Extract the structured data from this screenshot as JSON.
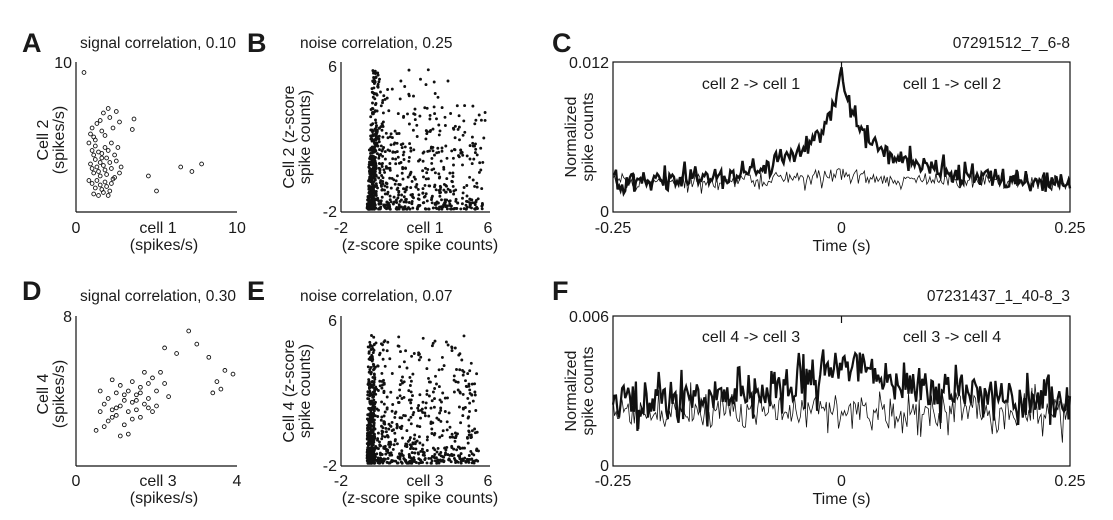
{
  "panels": {
    "A": {
      "letter": "A",
      "title": "signal correlation, 0.10",
      "ylabel1": "Cell 2",
      "ylabel2": "(spikes/s)",
      "xlabel1": "cell 1",
      "xlabel2": "(spikes/s)",
      "xticks": [
        "0",
        "10"
      ],
      "ytick_top": "10"
    },
    "B": {
      "letter": "B",
      "title": "noise correlation, 0.25",
      "ylabel1": "Cell 2 (z-score",
      "ylabel2": "spike counts)",
      "xlabel1": "cell 1",
      "xlabel2": "(z-score spike counts)",
      "xticks": [
        "-2",
        "6"
      ],
      "yticks": [
        "6",
        "-2"
      ]
    },
    "C": {
      "letter": "C",
      "title": "07291512_7_6-8",
      "ylabel1": "Normalized",
      "ylabel2": "spike counts",
      "xlabel": "Time (s)",
      "xticks": [
        "-0.25",
        "0",
        "0.25"
      ],
      "yticks": [
        "0.012",
        "0"
      ],
      "annot_left": "cell 2 -> cell 1",
      "annot_right": "cell 1 -> cell 2"
    },
    "D": {
      "letter": "D",
      "title": "signal correlation, 0.30",
      "ylabel1": "Cell 4",
      "ylabel2": "(spikes/s)",
      "xlabel1": "cell 3",
      "xlabel2": "(spikes/s)",
      "xticks": [
        "0",
        "4"
      ],
      "ytick_top": "8"
    },
    "E": {
      "letter": "E",
      "title": "noise correlation, 0.07",
      "ylabel1": "Cell 4 (z-score",
      "ylabel2": "spike counts)",
      "xlabel1": "cell 3",
      "xlabel2": "(z-score spike counts)",
      "xticks": [
        "-2",
        "6"
      ],
      "yticks": [
        "6",
        "-2"
      ]
    },
    "F": {
      "letter": "F",
      "title": "07231437_1_40-8_3",
      "ylabel1": "Normalized",
      "ylabel2": "spike counts",
      "xlabel": "Time (s)",
      "xticks": [
        "-0.25",
        "0",
        "0.25"
      ],
      "yticks": [
        "0.006",
        "0"
      ],
      "annot_left": "cell 4 -> cell 3",
      "annot_right": "cell 3 -> cell 4"
    }
  },
  "chart_data": [
    {
      "panel": "A",
      "type": "scatter",
      "title": "signal correlation, 0.10",
      "xlabel": "cell 1 (spikes/s)",
      "ylabel": "Cell 2 (spikes/s)",
      "xlim": [
        0,
        10
      ],
      "ylim": [
        0,
        10
      ],
      "correlation": 0.1,
      "marker": "open-circle",
      "points": [
        [
          0.5,
          9.3
        ],
        [
          0.8,
          4.6
        ],
        [
          0.9,
          5.2
        ],
        [
          1.0,
          5.6
        ],
        [
          1.1,
          5.0
        ],
        [
          1.2,
          4.4
        ],
        [
          1.3,
          5.9
        ],
        [
          1.5,
          6.1
        ],
        [
          1.6,
          5.4
        ],
        [
          1.7,
          6.6
        ],
        [
          1.8,
          5.1
        ],
        [
          2.0,
          6.9
        ],
        [
          2.1,
          6.3
        ],
        [
          2.3,
          5.6
        ],
        [
          2.5,
          6.7
        ],
        [
          2.7,
          6.0
        ],
        [
          1.0,
          4.1
        ],
        [
          1.1,
          3.8
        ],
        [
          1.2,
          3.5
        ],
        [
          1.4,
          4.0
        ],
        [
          1.5,
          3.3
        ],
        [
          1.6,
          3.9
        ],
        [
          1.8,
          4.3
        ],
        [
          1.9,
          3.6
        ],
        [
          2.0,
          4.1
        ],
        [
          2.2,
          4.6
        ],
        [
          2.4,
          3.8
        ],
        [
          2.6,
          4.3
        ],
        [
          0.9,
          3.2
        ],
        [
          1.0,
          2.9
        ],
        [
          1.1,
          2.6
        ],
        [
          1.3,
          3.0
        ],
        [
          1.4,
          2.7
        ],
        [
          1.5,
          2.4
        ],
        [
          1.7,
          3.1
        ],
        [
          1.8,
          2.8
        ],
        [
          1.9,
          2.5
        ],
        [
          2.1,
          3.3
        ],
        [
          2.2,
          2.9
        ],
        [
          2.3,
          2.2
        ],
        [
          2.5,
          3.4
        ],
        [
          2.7,
          2.6
        ],
        [
          0.8,
          2.1
        ],
        [
          1.0,
          1.9
        ],
        [
          1.2,
          1.6
        ],
        [
          1.3,
          2.1
        ],
        [
          1.5,
          1.8
        ],
        [
          1.6,
          1.5
        ],
        [
          1.8,
          2.0
        ],
        [
          1.9,
          1.7
        ],
        [
          2.1,
          1.4
        ],
        [
          2.2,
          1.9
        ],
        [
          2.4,
          2.3
        ],
        [
          1.1,
          1.2
        ],
        [
          1.4,
          1.1
        ],
        [
          1.7,
          1.3
        ],
        [
          2.0,
          1.1
        ],
        [
          3.5,
          5.5
        ],
        [
          3.6,
          6.2
        ],
        [
          4.5,
          2.4
        ],
        [
          5.0,
          1.4
        ],
        [
          6.5,
          3.0
        ],
        [
          7.2,
          2.7
        ],
        [
          7.8,
          3.2
        ],
        [
          1.6,
          3.6
        ],
        [
          1.2,
          4.8
        ],
        [
          2.8,
          3.0
        ]
      ]
    },
    {
      "panel": "B",
      "type": "scatter",
      "title": "noise correlation, 0.25",
      "xlabel": "cell 1 (z-score spike counts)",
      "ylabel": "Cell 2 (z-score spike counts)",
      "xlim": [
        -2,
        6
      ],
      "ylim": [
        -2,
        6
      ],
      "correlation": 0.25,
      "marker": "filled-dot",
      "description_points": "dense cloud, concentrated near x≈-0.5 to 0, y spanning -1.8 to 5.6"
    },
    {
      "panel": "C",
      "type": "line",
      "title": "07291512_7_6-8",
      "xlabel": "Time (s)",
      "ylabel": "Normalized spike counts",
      "xlim": [
        -0.25,
        0.25
      ],
      "ylim": [
        0,
        0.012
      ],
      "xticks": [
        -0.25,
        0,
        0.25
      ],
      "yticks": [
        0,
        0.012
      ],
      "series": [
        {
          "style": "thick",
          "peak_x": 0.0,
          "peak_y": 0.0112,
          "baseline": 0.0022
        },
        {
          "style": "thin",
          "baseline": 0.0024
        }
      ]
    },
    {
      "panel": "D",
      "type": "scatter",
      "title": "signal correlation, 0.30",
      "xlabel": "cell 3 (spikes/s)",
      "ylabel": "Cell 4 (spikes/s)",
      "xlim": [
        0,
        4
      ],
      "ylim": [
        0,
        8
      ],
      "correlation": 0.3,
      "marker": "open-circle",
      "points": [
        [
          0.5,
          1.9
        ],
        [
          0.6,
          2.9
        ],
        [
          0.6,
          4.0
        ],
        [
          0.7,
          3.3
        ],
        [
          0.8,
          2.4
        ],
        [
          0.8,
          3.6
        ],
        [
          0.9,
          4.6
        ],
        [
          0.9,
          3.0
        ],
        [
          1.0,
          2.7
        ],
        [
          1.0,
          3.9
        ],
        [
          1.1,
          4.3
        ],
        [
          1.1,
          3.2
        ],
        [
          1.2,
          2.2
        ],
        [
          1.2,
          3.5
        ],
        [
          1.3,
          4.0
        ],
        [
          1.3,
          2.9
        ],
        [
          1.4,
          3.4
        ],
        [
          1.4,
          4.5
        ],
        [
          1.5,
          3.0
        ],
        [
          1.5,
          3.8
        ],
        [
          1.6,
          2.6
        ],
        [
          1.6,
          4.2
        ],
        [
          1.7,
          3.3
        ],
        [
          1.7,
          5.0
        ],
        [
          1.8,
          4.4
        ],
        [
          1.8,
          3.6
        ],
        [
          1.9,
          2.9
        ],
        [
          1.9,
          4.7
        ],
        [
          2.0,
          3.2
        ],
        [
          2.0,
          4.0
        ],
        [
          2.1,
          5.0
        ],
        [
          2.2,
          4.4
        ],
        [
          2.2,
          6.3
        ],
        [
          1.1,
          1.6
        ],
        [
          1.3,
          1.7
        ],
        [
          0.7,
          2.1
        ],
        [
          1.0,
          3.1
        ],
        [
          1.2,
          3.8
        ],
        [
          1.5,
          3.5
        ],
        [
          1.6,
          3.9
        ],
        [
          1.8,
          3.1
        ],
        [
          2.3,
          3.7
        ],
        [
          2.5,
          6.0
        ],
        [
          2.8,
          7.2
        ],
        [
          3.0,
          6.5
        ],
        [
          3.3,
          5.8
        ],
        [
          3.5,
          4.5
        ],
        [
          3.6,
          4.1
        ],
        [
          3.7,
          5.1
        ],
        [
          3.9,
          4.9
        ],
        [
          3.4,
          3.9
        ],
        [
          0.9,
          2.6
        ],
        [
          1.4,
          2.5
        ]
      ]
    },
    {
      "panel": "E",
      "type": "scatter",
      "title": "noise correlation, 0.07",
      "xlabel": "cell 3 (z-score spike counts)",
      "ylabel": "Cell 4 (z-score spike counts)",
      "xlim": [
        -2,
        6
      ],
      "ylim": [
        -2,
        6
      ],
      "correlation": 0.07,
      "marker": "filled-dot",
      "description_points": "dense cloud, concentrated near x≈-0.6 to 0, y spanning -1.9 to 5"
    },
    {
      "panel": "F",
      "type": "line",
      "title": "07231437_1_40-8_3",
      "xlabel": "Time (s)",
      "ylabel": "Normalized spike counts",
      "xlim": [
        -0.25,
        0.25
      ],
      "ylim": [
        0,
        0.006
      ],
      "xticks": [
        -0.25,
        0,
        0.25
      ],
      "yticks": [
        0,
        0.006
      ],
      "series": [
        {
          "style": "thick",
          "peak_x": 0.01,
          "peak_y": 0.0043,
          "baseline": 0.0025
        },
        {
          "style": "thin",
          "baseline": 0.0022
        }
      ]
    }
  ]
}
